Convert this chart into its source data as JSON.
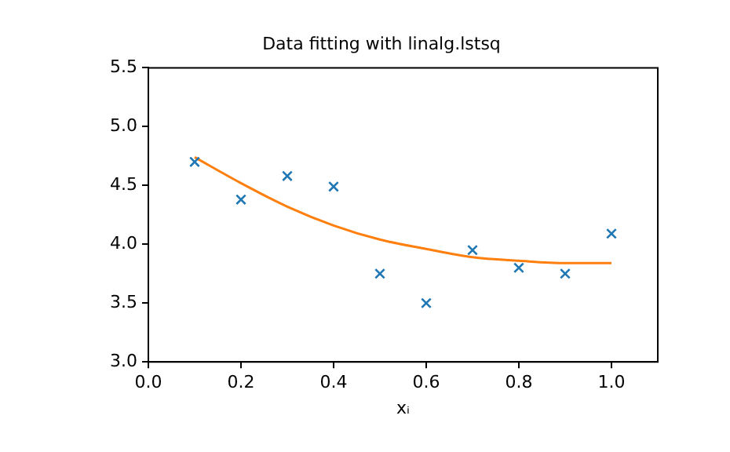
{
  "chart_data": {
    "type": "scatter",
    "title": "Data fitting with linalg.lstsq",
    "xlabel": "xᵢ",
    "grid": false,
    "legend": false,
    "xlim": [
      0,
      1.1
    ],
    "xticks": [
      {
        "value": 0,
        "label": "0.0"
      },
      {
        "value": 0.2,
        "label": "0.2"
      },
      {
        "value": 0.4,
        "label": "0.4"
      },
      {
        "value": 0.6,
        "label": "0.6"
      },
      {
        "value": 0.8,
        "label": "0.8"
      },
      {
        "value": 1,
        "label": "1.0"
      }
    ],
    "ylim": [
      3,
      5.5
    ],
    "yticks": [
      {
        "value": 3,
        "label": "3.0"
      },
      {
        "value": 3.5,
        "label": "3.5"
      },
      {
        "value": 4,
        "label": "4.0"
      },
      {
        "value": 4.5,
        "label": "4.5"
      },
      {
        "value": 5,
        "label": "5.0"
      },
      {
        "value": 5.5,
        "label": "5.5"
      }
    ],
    "series": [
      {
        "marker": "cross",
        "color": "#1f77b4",
        "x": [
          0.1,
          0.2,
          0.3,
          0.4,
          0.5,
          0.6,
          0.7,
          0.8,
          0.9,
          1.0
        ],
        "values": [
          4.7,
          4.38,
          4.58,
          4.49,
          3.75,
          3.5,
          3.95,
          3.8,
          3.75,
          4.09
        ]
      },
      {
        "type": "line",
        "color": "#ff7f0e",
        "x": [
          0.1,
          0.2,
          0.3,
          0.4,
          0.5,
          0.6,
          0.7,
          0.8,
          0.9,
          1.0
        ],
        "values": [
          4.74,
          4.52,
          4.32,
          4.16,
          4.04,
          3.96,
          3.89,
          3.86,
          3.84,
          3.84
        ]
      }
    ]
  }
}
